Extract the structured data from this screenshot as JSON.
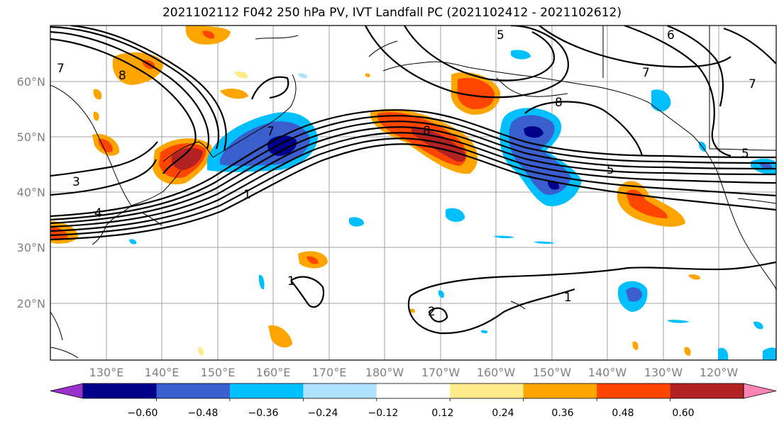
{
  "title": "2021102112 F042 250 hPa PV, IVT Landfall PC (2021102412 - 2021102612)",
  "latitude_labels": [
    "60°N",
    "50°N",
    "40°N",
    "30°N",
    "20°N"
  ],
  "longitude_labels": [
    "130°E",
    "140°E",
    "150°E",
    "160°E",
    "170°E",
    "180°W",
    "170°W",
    "160°W",
    "150°W",
    "140°W",
    "130°W",
    "120°W"
  ],
  "colorbar": {
    "tick_labels": [
      "−0.60",
      "−0.48",
      "−0.36",
      "−0.24",
      "−0.12",
      "0.12",
      "0.24",
      "0.36",
      "0.48",
      "0.60"
    ],
    "colors": [
      "#9932cc",
      "#00008b",
      "#3a5fcd",
      "#00bfff",
      "#b0e2ff",
      "#ffffff",
      "#ffeb8a",
      "#ffa500",
      "#ff4500",
      "#b22222",
      "#ff83b4"
    ]
  },
  "contour_labels": [
    "1",
    "2",
    "3",
    "4",
    "5",
    "6",
    "7",
    "8"
  ],
  "colors": {
    "contour": "#000000",
    "grid": "#a0a0a0",
    "axis_label": "#808080"
  }
}
